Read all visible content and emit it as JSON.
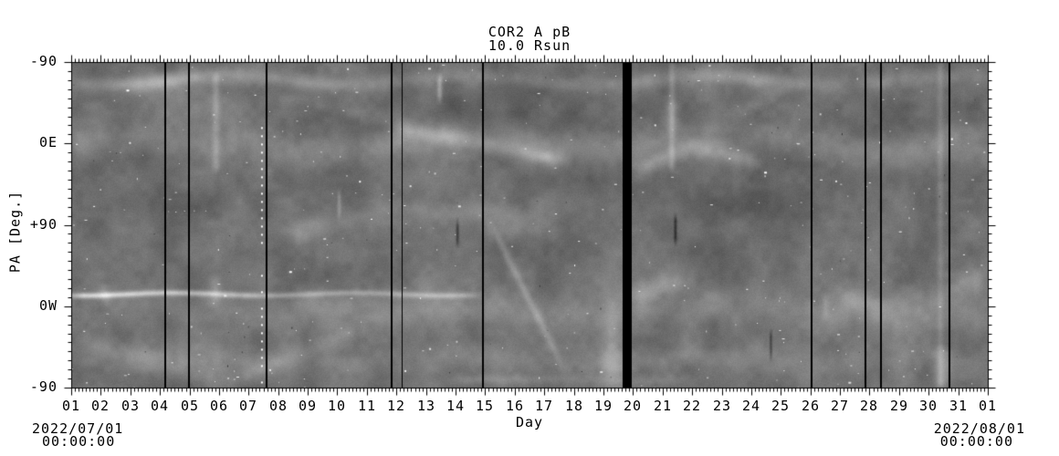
{
  "title": "COR2 A pB",
  "subtitle": "10.0 Rsun",
  "axes": {
    "xlabel": "Day",
    "ylabel": "PA [Deg.]",
    "x_tick_labels": [
      "01",
      "02",
      "03",
      "04",
      "05",
      "06",
      "07",
      "08",
      "09",
      "10",
      "11",
      "12",
      "13",
      "14",
      "15",
      "16",
      "17",
      "18",
      "19",
      "20",
      "21",
      "22",
      "23",
      "24",
      "25",
      "26",
      "27",
      "28",
      "29",
      "30",
      "31",
      "01"
    ],
    "y_tick_labels": [
      "-90",
      "0E",
      "+90",
      "0W",
      "-90"
    ],
    "start_date": "2022/07/01",
    "start_time": "00:00:00",
    "end_date": "2022/08/01",
    "end_time": "00:00:00"
  },
  "chart_data": {
    "type": "heatmap",
    "title": "COR2 A pB",
    "subtitle": "10.0 Rsun",
    "xlabel": "Day",
    "ylabel": "PA [Deg.]",
    "colormap": "grayscale",
    "x_range": {
      "start": "2022/07/01 00:00:00",
      "end": "2022/08/01 00:00:00",
      "days": 31
    },
    "x_tick_labels": [
      "01",
      "02",
      "03",
      "04",
      "05",
      "06",
      "07",
      "08",
      "09",
      "10",
      "11",
      "12",
      "13",
      "14",
      "15",
      "16",
      "17",
      "18",
      "19",
      "20",
      "21",
      "22",
      "23",
      "24",
      "25",
      "26",
      "27",
      "28",
      "29",
      "30",
      "31",
      "01"
    ],
    "x_minor_ticks_per_day": 8,
    "y_tick_labels": [
      "-90",
      "0E",
      "+90",
      "0W",
      "-90"
    ],
    "y_major_tick_step_deg": 90,
    "y_minor_tick_step_deg": 10,
    "y_span_deg": 360,
    "data_gaps": [
      {
        "day": 4.18,
        "width": 2
      },
      {
        "day": 4.98,
        "width": 2
      },
      {
        "day": 7.62,
        "width": 2
      },
      {
        "day": 11.84,
        "width": 2
      },
      {
        "day": 12.18,
        "width": 1
      },
      {
        "day": 14.92,
        "width": 2
      },
      {
        "day": 26.04,
        "width": 2
      },
      {
        "day": 27.86,
        "width": 2
      },
      {
        "day": 28.38,
        "width": 2
      },
      {
        "day": 30.7,
        "width": 2
      }
    ],
    "thick_gap_day_range": [
      19.65,
      19.95
    ],
    "map_render": {
      "seed": 42,
      "base": 112,
      "noise_coarse": 26,
      "noise_fine": 12,
      "grain": 10,
      "bands": [
        {
          "d0": 1,
          "d1": 32,
          "y0": 0.055,
          "y1": 0.055,
          "s": 6,
          "a": 30,
          "wa": 5,
          "wl": 260,
          "ph": 0.5
        },
        {
          "d0": 1,
          "d1": 32,
          "y0": 0.245,
          "y1": 0.245,
          "s": 12,
          "a": 26,
          "wa": 7,
          "wl": 300,
          "ph": 2.1
        },
        {
          "d0": 12,
          "d1": 17.6,
          "y0": 0.2,
          "y1": 0.3,
          "s": 6,
          "a": 34
        },
        {
          "d0": 7.8,
          "d1": 12,
          "y0": 0.1,
          "y1": 0.17,
          "s": 7,
          "a": 22
        },
        {
          "d0": 8.3,
          "d1": 12,
          "y0": 0.53,
          "y1": 0.45,
          "s": 9,
          "a": 20
        },
        {
          "d0": 12,
          "d1": 17,
          "y0": 0.45,
          "y1": 0.47,
          "s": 9,
          "a": 20
        },
        {
          "d0": 15.3,
          "d1": 17.6,
          "y0": 0.52,
          "y1": 0.93,
          "s": 7,
          "a": 24
        },
        {
          "d0": 1,
          "d1": 14.6,
          "y0": 0.712,
          "y1": 0.712,
          "s": 2.3,
          "a": 64,
          "wa": 1.5,
          "wl": 200,
          "ph": 1.2
        },
        {
          "d0": 1,
          "d1": 32,
          "y0": 0.765,
          "y1": 0.765,
          "s": 15,
          "a": 22,
          "wa": 6,
          "wl": 340,
          "ph": 4.0
        },
        {
          "d0": 1,
          "d1": 32,
          "y0": 0.915,
          "y1": 0.915,
          "s": 10,
          "a": 16,
          "wa": 4,
          "wl": 280,
          "ph": 1.8
        },
        {
          "d0": 1.5,
          "d1": 6.2,
          "y0": 0.86,
          "y1": 0.975,
          "s": 8,
          "a": 20
        },
        {
          "d0": 6.2,
          "d1": 10.8,
          "y0": 0.985,
          "y1": 0.82,
          "s": 8,
          "a": 18
        },
        {
          "d0": 20.1,
          "d1": 21.9,
          "y0": 0.335,
          "y1": 0.26,
          "s": 7,
          "a": 28
        },
        {
          "d0": 21.9,
          "d1": 24.3,
          "y0": 0.26,
          "y1": 0.305,
          "s": 7,
          "a": 24
        },
        {
          "d0": 23.2,
          "d1": 25.4,
          "y0": 0.165,
          "y1": 0.07,
          "s": 6,
          "a": 24
        },
        {
          "d0": 26.8,
          "d1": 28.7,
          "y0": 0.72,
          "y1": 0.745,
          "s": 10,
          "a": 26
        },
        {
          "d0": 30.6,
          "d1": 32,
          "y0": 0.7,
          "y1": 0.655,
          "s": 11,
          "a": 32
        },
        {
          "d0": 19.9,
          "d1": 21.8,
          "y0": 0.705,
          "y1": 0.675,
          "s": 8,
          "a": 24
        },
        {
          "d0": 14,
          "d1": 22,
          "y0": 0.975,
          "y1": 0.975,
          "s": 4,
          "a": 18
        }
      ],
      "blobs": [
        {
          "d": 15,
          "y": 0.16,
          "sx": 110,
          "sy": 26,
          "a": -16
        },
        {
          "d": 23,
          "y": 0.4,
          "sx": 95,
          "sy": 42,
          "a": -13
        },
        {
          "d": 17,
          "y": 0.87,
          "sx": 90,
          "sy": 20,
          "a": -9
        },
        {
          "d": 3.5,
          "y": 0.4,
          "sx": 70,
          "sy": 40,
          "a": -8
        },
        {
          "d": 29,
          "y": 0.18,
          "sx": 60,
          "sy": 25,
          "a": -9
        },
        {
          "d": 1.5,
          "y": 0.02,
          "sx": 60,
          "sy": 12,
          "a": -11
        },
        {
          "d": 5.7,
          "y": 0.27,
          "sx": 30,
          "sy": 18,
          "a": 18
        },
        {
          "d": 4.8,
          "y": 0.1,
          "sx": 40,
          "sy": 20,
          "a": 13
        },
        {
          "d": 19.25,
          "y": 0.88,
          "sx": 8,
          "sy": 35,
          "a": 34
        },
        {
          "d": 19.3,
          "y": 0.7,
          "sx": 10,
          "sy": 25,
          "a": 16
        },
        {
          "d": 20.6,
          "y": 0.7,
          "sx": 25,
          "sy": 25,
          "a": 14
        },
        {
          "d": 21.3,
          "y": 0.16,
          "sx": 5,
          "sy": 14,
          "a": 30
        }
      ],
      "streaks": [
        {
          "d": 5.88,
          "y0": 0.04,
          "y1": 0.33,
          "s": 3,
          "a": 28
        },
        {
          "d": 5.88,
          "y0": 0.66,
          "y1": 0.74,
          "s": 4,
          "a": 24
        },
        {
          "d": 13.45,
          "y0": 0.045,
          "y1": 0.115,
          "s": 2,
          "a": 46
        },
        {
          "d": 21.3,
          "y0": 0.0,
          "y1": 0.33,
          "s": 2.5,
          "a": 26
        },
        {
          "d": 30.38,
          "y0": 0.0,
          "y1": 1.0,
          "s": 2.5,
          "a": 20
        },
        {
          "d": 30.42,
          "y0": 0.88,
          "y1": 0.99,
          "s": 6,
          "a": 36
        },
        {
          "d": 2.1,
          "y0": 0.69,
          "y1": 0.735,
          "s": 5,
          "a": 28
        },
        {
          "d": 10.05,
          "y0": 0.4,
          "y1": 0.47,
          "s": 1.5,
          "a": 30
        },
        {
          "d": 26.5,
          "y0": 0.72,
          "y1": 0.78,
          "s": 3,
          "a": 22
        }
      ],
      "dark_dashes": [
        {
          "d": 14.05,
          "y0": 0.49,
          "y1": 0.555,
          "s": 1.2,
          "a": -50
        },
        {
          "d": 21.42,
          "y0": 0.475,
          "y1": 0.55,
          "s": 1.2,
          "a": -55
        },
        {
          "d": 24.65,
          "y0": 0.83,
          "y1": 0.905,
          "s": 1.1,
          "a": -45
        }
      ],
      "dotted_line": {
        "d": 7.42,
        "y0": 0.2,
        "y1": 0.985,
        "step": 9
      },
      "speckles_bright": 340,
      "speckles_dark": 45
    }
  }
}
